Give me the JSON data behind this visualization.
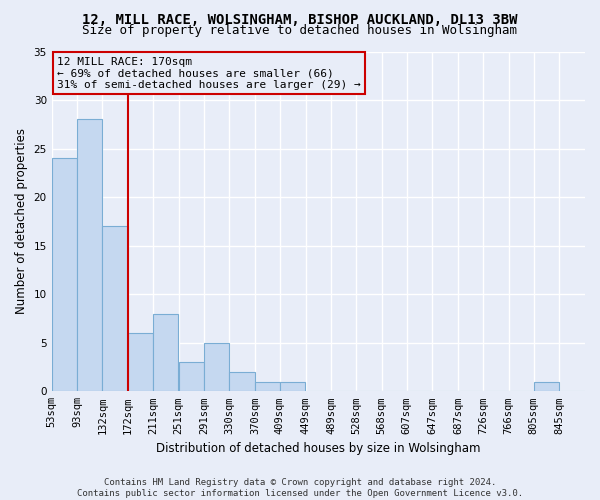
{
  "title1": "12, MILL RACE, WOLSINGHAM, BISHOP AUCKLAND, DL13 3BW",
  "title2": "Size of property relative to detached houses in Wolsingham",
  "xlabel": "Distribution of detached houses by size in Wolsingham",
  "ylabel": "Number of detached properties",
  "bin_labels": [
    "53sqm",
    "93sqm",
    "132sqm",
    "172sqm",
    "211sqm",
    "251sqm",
    "291sqm",
    "330sqm",
    "370sqm",
    "409sqm",
    "449sqm",
    "489sqm",
    "528sqm",
    "568sqm",
    "607sqm",
    "647sqm",
    "687sqm",
    "726sqm",
    "766sqm",
    "805sqm",
    "845sqm"
  ],
  "bar_values": [
    24,
    28,
    17,
    6,
    8,
    3,
    5,
    2,
    1,
    1,
    0,
    0,
    0,
    0,
    0,
    0,
    0,
    0,
    0,
    1,
    0
  ],
  "bar_color": "#c5d8f0",
  "bar_edge_color": "#7aadd4",
  "subject_line_color": "#cc0000",
  "annotation_box_color": "#cc0000",
  "ylim": [
    0,
    35
  ],
  "yticks": [
    0,
    5,
    10,
    15,
    20,
    25,
    30,
    35
  ],
  "footnote": "Contains HM Land Registry data © Crown copyright and database right 2024.\nContains public sector information licensed under the Open Government Licence v3.0.",
  "background_color": "#e8edf8",
  "grid_color": "#ffffff",
  "title_fontsize": 10,
  "subtitle_fontsize": 9,
  "axis_label_fontsize": 8.5,
  "tick_fontsize": 7.5,
  "annotation_fontsize": 8,
  "footnote_fontsize": 6.5
}
